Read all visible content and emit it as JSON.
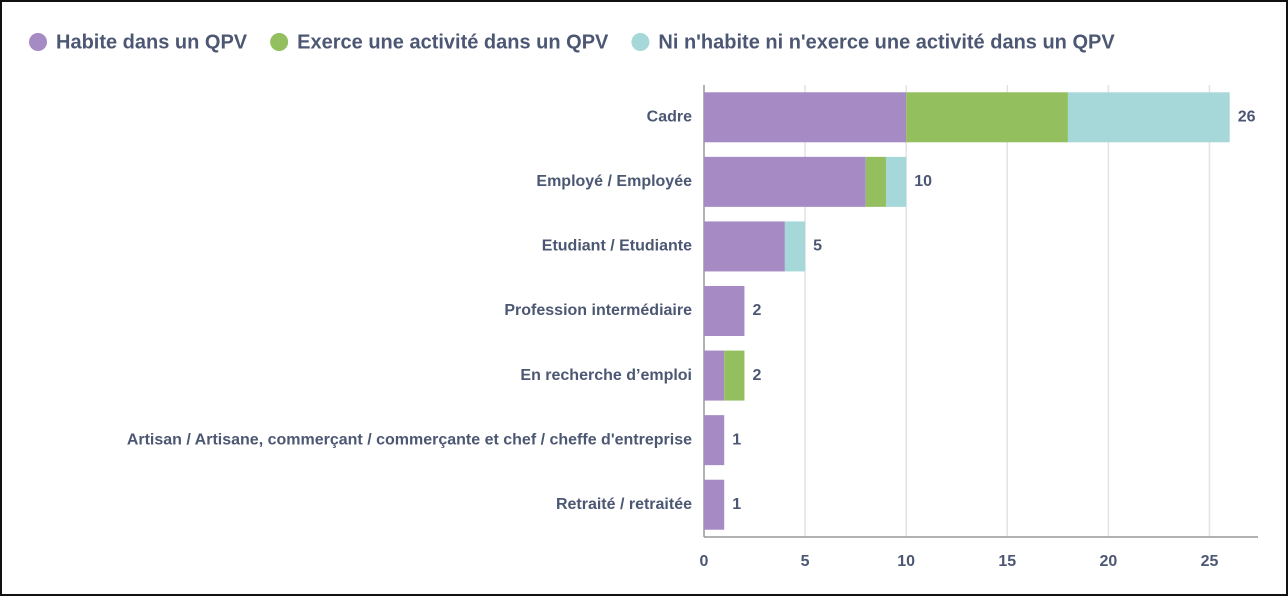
{
  "chart_data": {
    "type": "stacked-barh",
    "categories": [
      "Cadre",
      "Employé / Employée",
      "Etudiant / Etudiante",
      "Profession intermédiaire",
      "En recherche d’emploi",
      "Artisan / Artisane, commerçant / commerçante et chef / cheffe d'entreprise",
      "Retraité / retraitée"
    ],
    "series": [
      {
        "name": "Habite dans un QPV",
        "color": "#a68ac3",
        "values": [
          10,
          8,
          4,
          2,
          1,
          1,
          1
        ]
      },
      {
        "name": "Exerce une activité dans un QPV",
        "color": "#93bf5f",
        "values": [
          8,
          1,
          0,
          0,
          1,
          0,
          0
        ]
      },
      {
        "name": "Ni n'habite ni n'exerce une activité dans un QPV",
        "color": "#a7d8d9",
        "values": [
          8,
          1,
          1,
          0,
          0,
          0,
          0
        ]
      }
    ],
    "totals": [
      26,
      10,
      5,
      2,
      2,
      1,
      1
    ],
    "xlim": [
      0,
      27.4
    ],
    "xticks": [
      0,
      5,
      10,
      15,
      20,
      25
    ],
    "grid": true,
    "legend": "top"
  }
}
